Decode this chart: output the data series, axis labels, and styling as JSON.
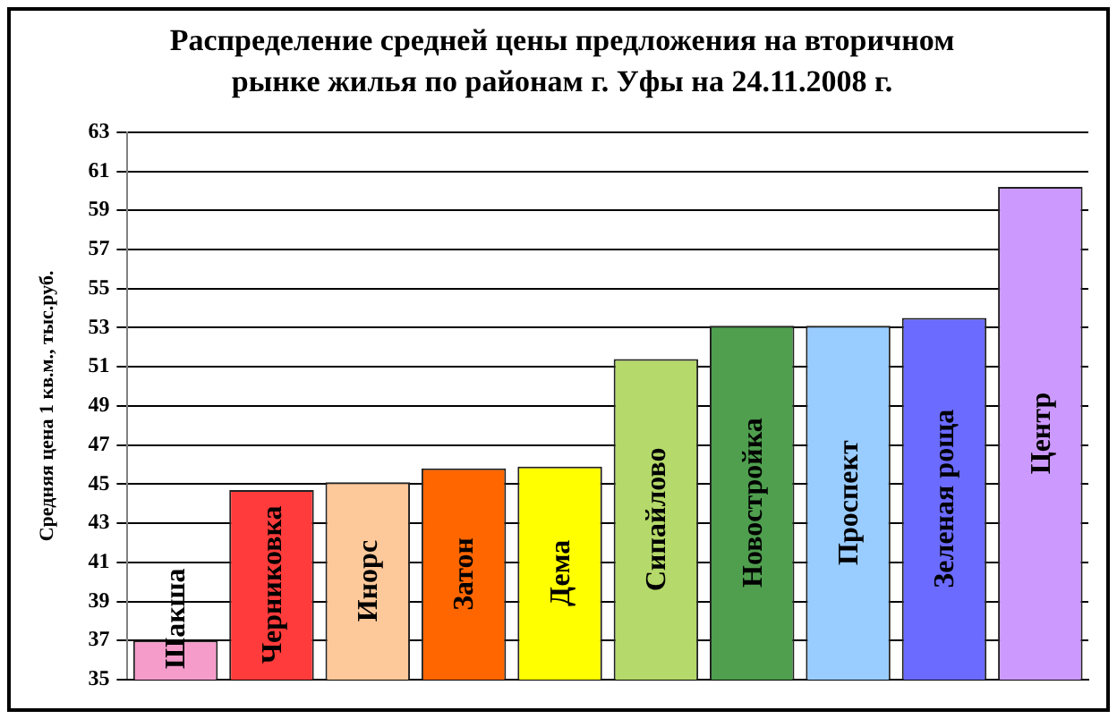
{
  "chart_data": {
    "type": "bar",
    "title": "Распределение средней цены предложения на вторичном рынке жилья по районам г. Уфы на 24.11.2008 г.",
    "ylabel": "Средняя цена 1 кв.м., тыс.руб.",
    "categories": [
      "Шакша",
      "Черниковка",
      "Инорс",
      "Затон",
      "Дема",
      "Сипайлово",
      "Новостройка",
      "Проспект",
      "Зеленая роща",
      "Центр"
    ],
    "values": [
      37.0,
      44.7,
      45.1,
      45.8,
      45.9,
      51.4,
      53.1,
      53.1,
      53.5,
      60.2
    ],
    "colors": [
      "#f59ccb",
      "#ff3b3b",
      "#fdc89a",
      "#ff6600",
      "#ffff00",
      "#b5d96a",
      "#4f9f4f",
      "#99ccff",
      "#6b6bff",
      "#cc99ff"
    ],
    "ylim": [
      35,
      63
    ],
    "yticks": [
      35,
      37,
      39,
      41,
      43,
      45,
      47,
      49,
      51,
      53,
      55,
      57,
      59,
      61,
      63
    ],
    "grid": "y",
    "legend": false
  }
}
